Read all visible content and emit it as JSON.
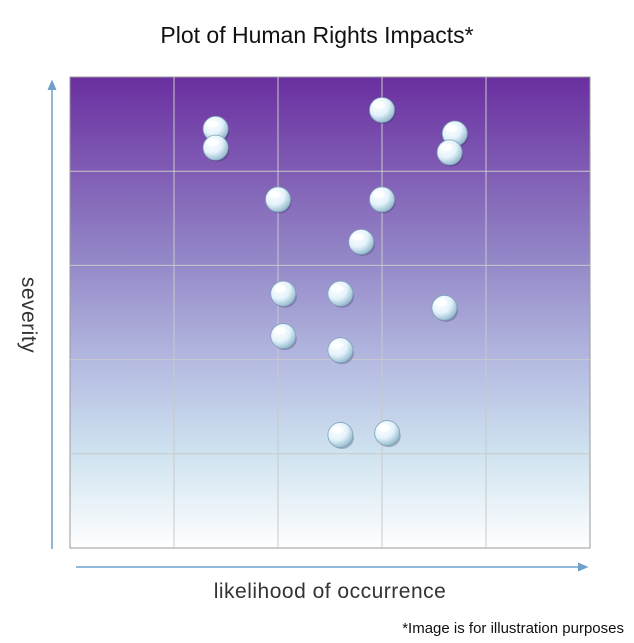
{
  "chart_data": {
    "type": "scatter",
    "title": "Plot of Human Rights Impacts*",
    "xlabel": "likelihood of occurrence",
    "ylabel": "severity",
    "footnote": "*Image is for illustration purposes",
    "xlim": [
      0,
      5
    ],
    "ylim": [
      0,
      5
    ],
    "grid": true,
    "background_gradient": [
      "#6a2fa0",
      "#a9a3d8",
      "#cfe3f0",
      "#ffffff"
    ],
    "axis_arrow_color": "#6fa0cc",
    "marker_color": "#dff0fb",
    "series": [
      {
        "points": [
          {
            "x": 1.4,
            "y": 4.45
          },
          {
            "x": 1.4,
            "y": 4.25
          },
          {
            "x": 3.0,
            "y": 4.65
          },
          {
            "x": 3.7,
            "y": 4.4
          },
          {
            "x": 3.65,
            "y": 4.2
          },
          {
            "x": 2.0,
            "y": 3.7
          },
          {
            "x": 3.0,
            "y": 3.7
          },
          {
            "x": 2.8,
            "y": 3.25
          },
          {
            "x": 2.05,
            "y": 2.7
          },
          {
            "x": 2.6,
            "y": 2.7
          },
          {
            "x": 3.6,
            "y": 2.55
          },
          {
            "x": 2.05,
            "y": 2.25
          },
          {
            "x": 2.6,
            "y": 2.1
          },
          {
            "x": 2.6,
            "y": 1.2
          },
          {
            "x": 3.05,
            "y": 1.22
          }
        ]
      }
    ]
  }
}
